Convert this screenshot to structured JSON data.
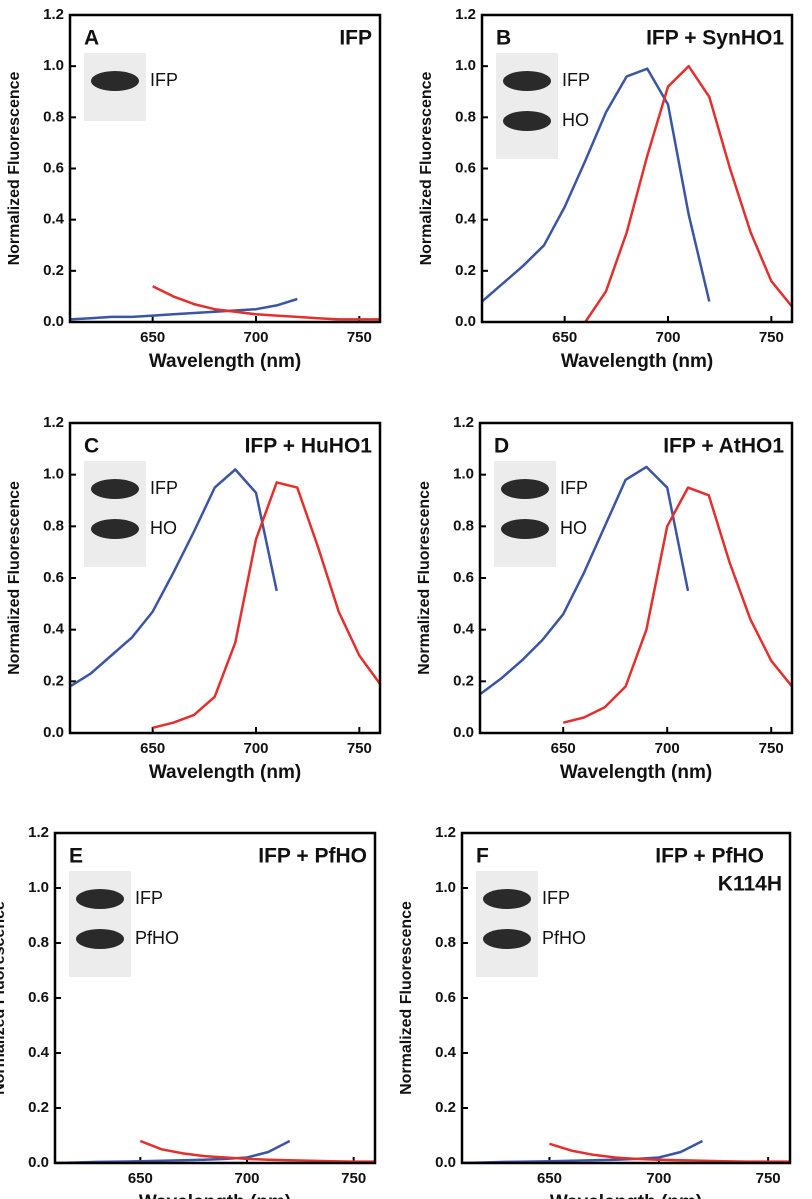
{
  "chart_data": [
    {
      "type": "line",
      "panel": "A",
      "title": "IFP",
      "xlabel": "Wavelength (nm)",
      "ylabel": "Normalized Fluorescence",
      "x": [
        610,
        620,
        630,
        640,
        650,
        660,
        670,
        680,
        690,
        700,
        710,
        720,
        730,
        740,
        750,
        760
      ],
      "series": [
        {
          "color": "#3b55a5",
          "values": [
            0.01,
            0.015,
            0.02,
            0.02,
            0.025,
            0.03,
            0.035,
            0.04,
            0.045,
            0.05,
            0.065,
            0.09,
            null,
            null,
            null,
            null
          ]
        },
        {
          "color": "#e2302d",
          "values": [
            null,
            null,
            null,
            null,
            0.14,
            0.1,
            0.07,
            0.05,
            0.04,
            0.03,
            0.025,
            0.02,
            0.015,
            0.01,
            0.01,
            0.01
          ]
        }
      ],
      "xlim": [
        610,
        760
      ],
      "xticks": [
        650,
        700,
        750
      ],
      "ylim": [
        0,
        1.2
      ],
      "yticks": [
        {
          "value": 0,
          "label": "0.0"
        },
        0.2,
        0.4,
        0.6,
        0.8,
        {
          "value": 1,
          "label": "1.0"
        },
        1.2
      ],
      "blot_labels": [
        "IFP"
      ]
    },
    {
      "type": "line",
      "panel": "B",
      "title": "IFP + SynHO1",
      "xlabel": "Wavelength (nm)",
      "ylabel": "Normalized Fluorescence",
      "x": [
        610,
        620,
        630,
        640,
        650,
        660,
        670,
        680,
        690,
        700,
        710,
        720,
        730,
        740,
        750,
        760
      ],
      "series": [
        {
          "color": "#3b55a5",
          "values": [
            0.08,
            0.15,
            0.22,
            0.3,
            0.45,
            0.63,
            0.82,
            0.96,
            0.99,
            0.85,
            0.42,
            0.08,
            null,
            null,
            null,
            null
          ]
        },
        {
          "color": "#e2302d",
          "values": [
            null,
            null,
            null,
            null,
            null,
            0.0,
            0.12,
            0.35,
            0.65,
            0.92,
            1.0,
            0.88,
            0.6,
            0.35,
            0.16,
            0.06
          ]
        }
      ],
      "xlim": [
        610,
        760
      ],
      "xticks": [
        650,
        700,
        750
      ],
      "ylim": [
        0,
        1.2
      ],
      "yticks": [
        {
          "value": 0,
          "label": "0.0"
        },
        0.2,
        0.4,
        0.6,
        0.8,
        {
          "value": 1,
          "label": "1.0"
        },
        1.2
      ],
      "blot_labels": [
        "IFP",
        "HO"
      ]
    },
    {
      "type": "line",
      "panel": "C",
      "title": "IFP + HuHO1",
      "xlabel": "Wavelength (nm)",
      "ylabel": "Normalized Fluorescence",
      "x": [
        610,
        620,
        630,
        640,
        650,
        660,
        670,
        680,
        690,
        700,
        710,
        720,
        730,
        740,
        750,
        760
      ],
      "series": [
        {
          "color": "#3b55a5",
          "values": [
            0.18,
            0.23,
            0.3,
            0.37,
            0.47,
            0.62,
            0.78,
            0.95,
            1.02,
            0.93,
            0.55,
            null,
            null,
            null,
            null,
            null
          ]
        },
        {
          "color": "#e2302d",
          "values": [
            null,
            null,
            null,
            null,
            0.02,
            0.04,
            0.07,
            0.14,
            0.35,
            0.75,
            0.97,
            0.95,
            0.72,
            0.47,
            0.3,
            0.19
          ]
        }
      ],
      "xlim": [
        610,
        760
      ],
      "xticks": [
        650,
        700,
        750
      ],
      "ylim": [
        0,
        1.2
      ],
      "yticks": [
        {
          "value": 0,
          "label": "0.0"
        },
        0.2,
        0.4,
        0.6,
        0.8,
        {
          "value": 1,
          "label": "1.0"
        },
        1.2
      ],
      "blot_labels": [
        "IFP",
        "HO"
      ]
    },
    {
      "type": "line",
      "panel": "D",
      "title": "IFP + AtHO1",
      "xlabel": "Wavelength (nm)",
      "ylabel": "Normalized Fluorescence",
      "x": [
        610,
        620,
        630,
        640,
        650,
        660,
        670,
        680,
        690,
        700,
        710,
        720,
        730,
        740,
        750,
        760
      ],
      "series": [
        {
          "color": "#3b55a5",
          "values": [
            0.15,
            0.21,
            0.28,
            0.36,
            0.46,
            0.62,
            0.8,
            0.98,
            1.03,
            0.95,
            0.55,
            null,
            null,
            null,
            null,
            null
          ]
        },
        {
          "color": "#e2302d",
          "values": [
            null,
            null,
            null,
            null,
            0.04,
            0.06,
            0.1,
            0.18,
            0.4,
            0.8,
            0.95,
            0.92,
            0.66,
            0.44,
            0.28,
            0.18
          ]
        }
      ],
      "xlim": [
        610,
        760
      ],
      "xticks": [
        650,
        700,
        750
      ],
      "ylim": [
        0,
        1.2
      ],
      "yticks": [
        {
          "value": 0,
          "label": "0.0"
        },
        0.2,
        0.4,
        0.6,
        0.8,
        {
          "value": 1,
          "label": "1.0"
        },
        1.2
      ],
      "blot_labels": [
        "IFP",
        "HO"
      ]
    },
    {
      "type": "line",
      "panel": "E",
      "title": "IFP + PfHO",
      "xlabel": "Wavelength (nm)",
      "ylabel": "Normalized Fluorescence",
      "x": [
        610,
        620,
        630,
        640,
        650,
        660,
        670,
        680,
        690,
        700,
        710,
        720,
        730,
        740,
        750,
        760
      ],
      "series": [
        {
          "color": "#3b55a5",
          "values": [
            0.0,
            0.002,
            0.004,
            0.005,
            0.006,
            0.008,
            0.01,
            0.012,
            0.015,
            0.02,
            0.04,
            0.08,
            null,
            null,
            null,
            null
          ]
        },
        {
          "color": "#e2302d",
          "values": [
            null,
            null,
            null,
            null,
            0.08,
            0.05,
            0.035,
            0.025,
            0.02,
            0.015,
            0.012,
            0.01,
            0.008,
            0.006,
            0.005,
            0.005
          ]
        }
      ],
      "xlim": [
        610,
        760
      ],
      "xticks": [
        650,
        700,
        750
      ],
      "ylim": [
        0,
        1.2
      ],
      "yticks": [
        {
          "value": 0,
          "label": "0.0"
        },
        0.2,
        0.4,
        0.6,
        0.8,
        {
          "value": 1,
          "label": "1.0"
        },
        1.2
      ],
      "blot_labels": [
        "IFP",
        "PfHO"
      ]
    },
    {
      "type": "line",
      "panel": "F",
      "title": "IFP + PfHO",
      "subtitle": "K114H",
      "xlabel": "Wavelength (nm)",
      "ylabel": "Normalized Fluorescence",
      "x": [
        610,
        620,
        630,
        640,
        650,
        660,
        670,
        680,
        690,
        700,
        710,
        720,
        730,
        740,
        750,
        760
      ],
      "series": [
        {
          "color": "#3b55a5",
          "values": [
            0.0,
            0.002,
            0.004,
            0.005,
            0.006,
            0.008,
            0.01,
            0.012,
            0.015,
            0.02,
            0.04,
            0.08,
            null,
            null,
            null,
            null
          ]
        },
        {
          "color": "#e2302d",
          "values": [
            null,
            null,
            null,
            null,
            0.07,
            0.045,
            0.03,
            0.02,
            0.015,
            0.012,
            0.01,
            0.008,
            0.006,
            0.005,
            0.005,
            0.005
          ]
        }
      ],
      "xlim": [
        610,
        760
      ],
      "xticks": [
        650,
        700,
        750
      ],
      "ylim": [
        0,
        1.2
      ],
      "yticks": [
        {
          "value": 0,
          "label": "0.0"
        },
        0.2,
        0.4,
        0.6,
        0.8,
        {
          "value": 1,
          "label": "1.0"
        },
        1.2
      ],
      "blot_labels": [
        "IFP",
        "PfHO"
      ]
    }
  ]
}
